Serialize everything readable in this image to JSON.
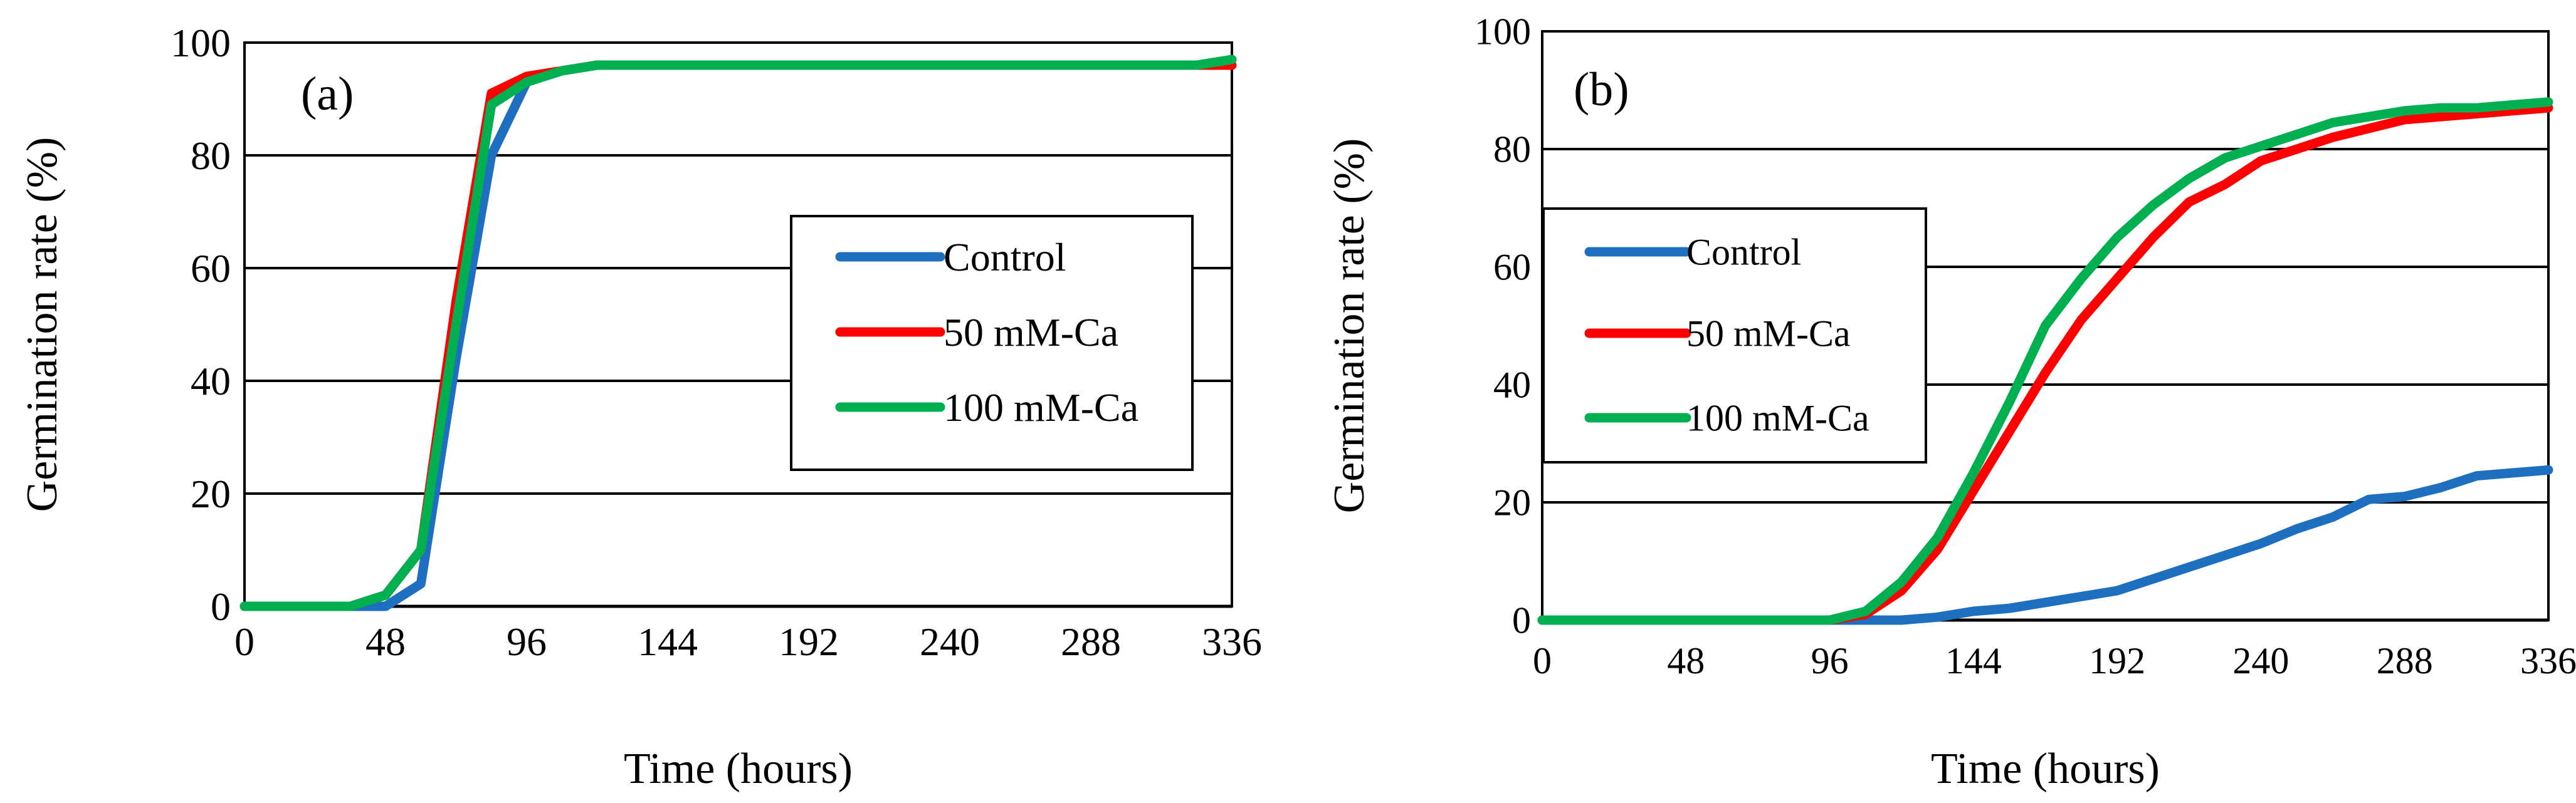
{
  "chart_data": [
    {
      "type": "line",
      "panel_label": "(a)",
      "title": "",
      "xlabel": "Time (hours)",
      "ylabel": "Germination rate (%)",
      "xlim": [
        0,
        336
      ],
      "ylim": [
        0,
        100
      ],
      "xticks": [
        0,
        48,
        96,
        144,
        192,
        240,
        288,
        336
      ],
      "yticks": [
        0,
        20,
        40,
        60,
        80,
        100
      ],
      "grid": "horizontal",
      "legend_position": "center-right",
      "series": [
        {
          "name": "Control",
          "color": "#1f6fc1",
          "x": [
            0,
            12,
            24,
            36,
            48,
            60,
            72,
            84,
            96,
            108,
            120,
            132,
            144,
            156,
            168,
            180,
            192,
            204,
            216,
            228,
            240,
            252,
            264,
            276,
            288,
            300,
            312,
            324,
            336
          ],
          "y": [
            0,
            0,
            0,
            0,
            0,
            4,
            44,
            80,
            93,
            95,
            96,
            96,
            96,
            96,
            96,
            96,
            96,
            96,
            96,
            96,
            96,
            96,
            96,
            96,
            96,
            96,
            96,
            96,
            96
          ]
        },
        {
          "name": "50 mM-Ca",
          "color": "#ff0000",
          "x": [
            0,
            12,
            24,
            36,
            48,
            60,
            72,
            84,
            96,
            108,
            120,
            132,
            144,
            156,
            168,
            180,
            192,
            204,
            216,
            228,
            240,
            252,
            264,
            276,
            288,
            300,
            312,
            324,
            336
          ],
          "y": [
            0,
            0,
            0,
            0,
            2,
            10,
            54,
            91,
            94,
            95,
            96,
            96,
            96,
            96,
            96,
            96,
            96,
            96,
            96,
            96,
            96,
            96,
            96,
            96,
            96,
            96,
            96,
            96,
            96
          ]
        },
        {
          "name": "100 mM-Ca",
          "color": "#00b050",
          "x": [
            0,
            12,
            24,
            36,
            48,
            60,
            72,
            84,
            96,
            108,
            120,
            132,
            144,
            156,
            168,
            180,
            192,
            204,
            216,
            228,
            240,
            252,
            264,
            276,
            288,
            300,
            312,
            324,
            336
          ],
          "y": [
            0,
            0,
            0,
            0,
            2,
            10,
            50,
            89,
            93,
            95,
            96,
            96,
            96,
            96,
            96,
            96,
            96,
            96,
            96,
            96,
            96,
            96,
            96,
            96,
            96,
            96,
            96,
            96,
            97
          ]
        }
      ]
    },
    {
      "type": "line",
      "panel_label": "(b)",
      "title": "",
      "xlabel": "Time (hours)",
      "ylabel": "Germination rate (%)",
      "xlim": [
        0,
        336
      ],
      "ylim": [
        0,
        100
      ],
      "xticks": [
        0,
        48,
        96,
        144,
        192,
        240,
        288,
        336
      ],
      "yticks": [
        0,
        20,
        40,
        60,
        80,
        100
      ],
      "grid": "horizontal",
      "legend_position": "center-left",
      "series": [
        {
          "name": "Control",
          "color": "#1f6fc1",
          "x": [
            0,
            12,
            24,
            36,
            48,
            60,
            72,
            84,
            96,
            108,
            120,
            132,
            144,
            156,
            168,
            180,
            192,
            204,
            216,
            228,
            240,
            252,
            264,
            276,
            288,
            300,
            312,
            324,
            336
          ],
          "y": [
            0,
            0,
            0,
            0,
            0,
            0,
            0,
            0,
            0,
            0,
            0,
            0.5,
            1.5,
            2,
            3,
            4,
            5,
            7,
            9,
            11,
            13,
            15.5,
            17.5,
            20.5,
            21,
            22.5,
            24.5,
            25,
            25.5
          ]
        },
        {
          "name": "50 mM-Ca",
          "color": "#ff0000",
          "x": [
            0,
            12,
            24,
            36,
            48,
            60,
            72,
            84,
            96,
            108,
            120,
            132,
            144,
            156,
            168,
            180,
            192,
            204,
            216,
            228,
            240,
            252,
            264,
            276,
            288,
            300,
            312,
            324,
            336
          ],
          "y": [
            0,
            0,
            0,
            0,
            0,
            0,
            0,
            0,
            0,
            1,
            5,
            12,
            22,
            32,
            42,
            51,
            58,
            65,
            71,
            74,
            78,
            80,
            82,
            83.5,
            85,
            85.5,
            86,
            86.5,
            87
          ]
        },
        {
          "name": "100 mM-Ca",
          "color": "#00b050",
          "x": [
            0,
            12,
            24,
            36,
            48,
            60,
            72,
            84,
            96,
            108,
            120,
            132,
            144,
            156,
            168,
            180,
            192,
            204,
            216,
            228,
            240,
            252,
            264,
            276,
            288,
            300,
            312,
            324,
            336
          ],
          "y": [
            0,
            0,
            0,
            0,
            0,
            0,
            0,
            0,
            0,
            1.5,
            6.5,
            14,
            25,
            37,
            50,
            58,
            65,
            70.5,
            75,
            78.5,
            80.5,
            82.5,
            84.5,
            85.5,
            86.5,
            87,
            87,
            87.5,
            88
          ]
        }
      ]
    }
  ]
}
